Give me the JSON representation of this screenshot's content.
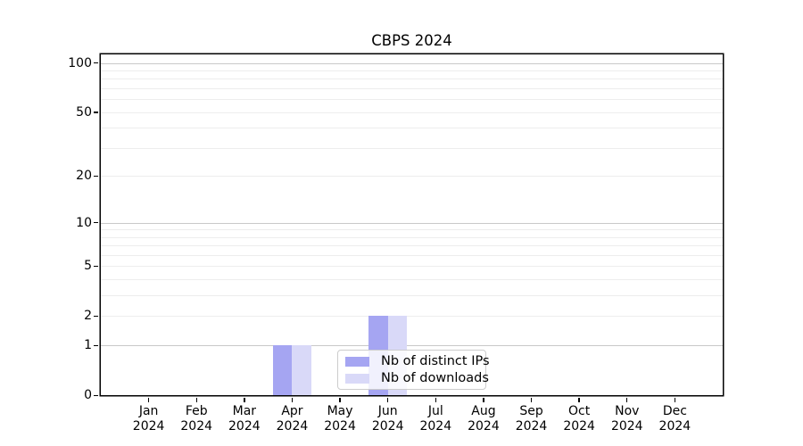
{
  "title": "CBPS 2024",
  "chart_data": {
    "type": "bar",
    "title": "CBPS 2024",
    "categories": [
      "Jan 2024",
      "Feb 2024",
      "Mar 2024",
      "Apr 2024",
      "May 2024",
      "Jun 2024",
      "Jul 2024",
      "Aug 2024",
      "Sep 2024",
      "Oct 2024",
      "Nov 2024",
      "Dec 2024"
    ],
    "series": [
      {
        "name": "Nb of distinct IPs",
        "color": "#a5a5f2",
        "values": [
          0,
          0,
          0,
          1,
          0,
          2,
          0,
          0,
          0,
          0,
          0,
          0
        ]
      },
      {
        "name": "Nb of downloads",
        "color": "#d9d9f8",
        "values": [
          0,
          0,
          0,
          1,
          0,
          2,
          0,
          0,
          0,
          0,
          0,
          0
        ]
      }
    ],
    "xlabel": "",
    "ylabel": "",
    "yscale": "log1p",
    "ylim": [
      0,
      113
    ],
    "yticks": [
      0,
      1,
      2,
      5,
      10,
      20,
      50,
      100
    ],
    "grid": "horizontal",
    "grid_major_at": [
      1,
      10,
      100
    ],
    "grid_minor_at": [
      2,
      3,
      4,
      5,
      6,
      7,
      8,
      9,
      20,
      30,
      40,
      50,
      60,
      70,
      80,
      90
    ],
    "legend": {
      "position": "inside-bottom-center",
      "entries": [
        "Nb of distinct IPs",
        "Nb of downloads"
      ]
    }
  },
  "colors": {
    "bar_distinct_ips": "#a5a5f2",
    "bar_downloads": "#d9d9f8",
    "grid_major": "#c9c9c9",
    "grid_minor": "#ededed",
    "axis": "#000000",
    "legend_border": "#cccccc",
    "background": "#ffffff",
    "text": "#000000"
  }
}
